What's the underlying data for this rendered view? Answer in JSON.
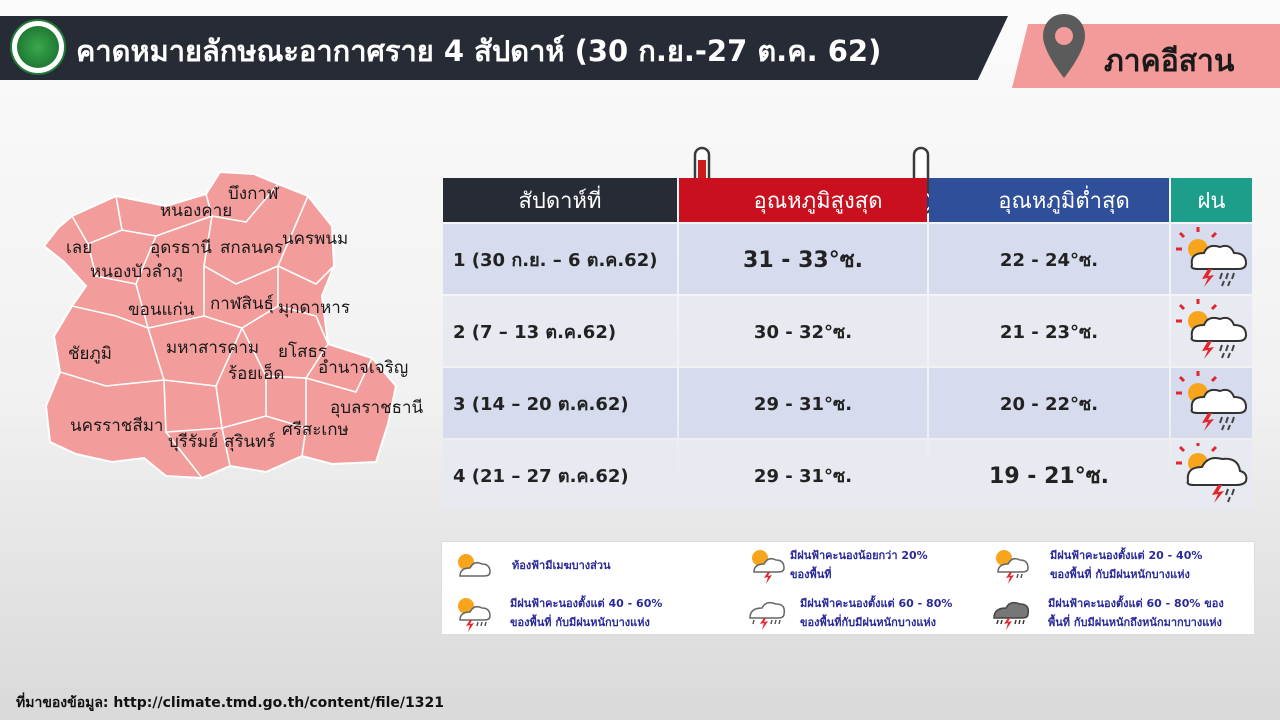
{
  "header": {
    "title": "คาดหมายลักษณะอากาศราย 4 สัปดาห์ (30 ก.ย.-27 ต.ค. 62)",
    "region": "ภาคอีสาน"
  },
  "map": {
    "provinces": [
      "บึงกาฬ",
      "หนองคาย",
      "เลย",
      "อุดรธานี",
      "สกลนคร",
      "นครพนม",
      "หนองบัวลำภู",
      "ขอนแก่น",
      "กาฬสินธุ์",
      "มุกดาหาร",
      "ชัยภูมิ",
      "มหาสารคาม",
      "ยโสธร",
      "ร้อยเอ็ด",
      "อำนาจเจริญ",
      "อุบลราชธานี",
      "นครราชสีมา",
      "บุรีรัมย์",
      "สุรินทร์",
      "ศรีสะเกษ"
    ]
  },
  "table": {
    "headers": {
      "week": "สัปดาห์ที่",
      "max": "อุณหภูมิสูงสุด",
      "min": "อุณหภูมิต่ำสุด",
      "rain": "ฝน"
    },
    "rows": [
      {
        "week": "1 (30 ก.ย. – 6 ต.ค.62)",
        "max": "31 - 33°ซ.",
        "min": "22 - 24°ซ.",
        "rain_icon": "storm-cloud-heavy-icon"
      },
      {
        "week": "2 (7 – 13 ต.ค.62)",
        "max": "30 - 32°ซ.",
        "min": "21 - 23°ซ.",
        "rain_icon": "storm-cloud-heavy-icon"
      },
      {
        "week": "3 (14 – 20 ต.ค.62)",
        "max": "29 - 31°ซ.",
        "min": "20 - 22°ซ.",
        "rain_icon": "storm-cloud-heavy-icon"
      },
      {
        "week": "4 (21 – 27 ต.ค.62)",
        "max": "29 - 31°ซ.",
        "min": "19 - 21°ซ.",
        "rain_icon": "storm-cloud-light-icon"
      }
    ]
  },
  "legend": {
    "items": [
      {
        "text": "ท้องฟ้ามีเมฆบางส่วน"
      },
      {
        "text1": "มีฝนฟ้าคะนองน้อยกว่า 20%",
        "text2": "ของพื้นที่"
      },
      {
        "text1": "มีฝนฟ้าคะนองตั้งแต่ 20 - 40%",
        "text2": "ของพื้นที่ กับมีฝนหนักบางแห่ง"
      },
      {
        "text1": "มีฝนฟ้าคะนองตั้งแต่ 40 - 60%",
        "text2": "ของพื้นที่ กับมีฝนหนักบางแห่ง"
      },
      {
        "text1": "มีฝนฟ้าคะนองตั้งแต่ 60 - 80%",
        "text2": "ของพื้นที่กับมีฝนหนักบางแห่ง"
      },
      {
        "text1": "มีฝนฟ้าคะนองตั้งแต่ 60 - 80% ของ",
        "text2": "พื้นที่ กับมีฝนหนักถึงหนักมากบางแห่ง"
      }
    ]
  },
  "source": "ที่มาของข้อมูล: http://climate.tmd.go.th/content/file/1321",
  "colors": {
    "header_bg": "#262b35",
    "region_bg": "#f39a9a",
    "map_fill": "#f29c9b",
    "max_header": "#c8101e",
    "min_header": "#2f4f9a",
    "rain_header": "#1c9e8b"
  }
}
